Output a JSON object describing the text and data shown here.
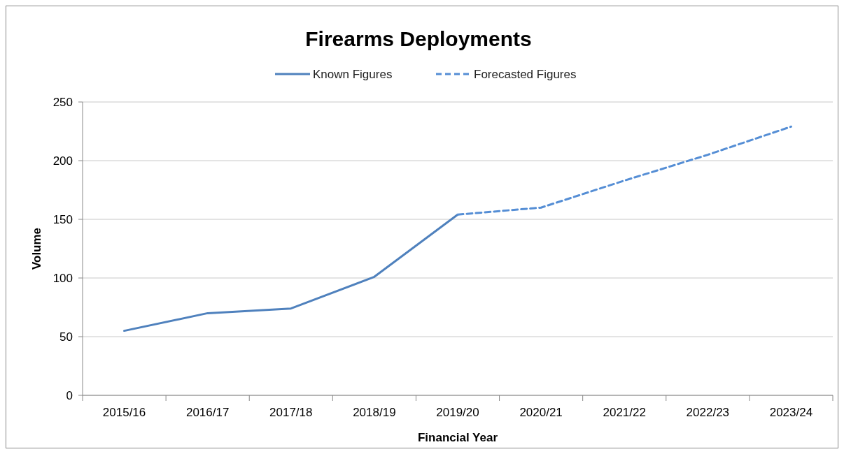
{
  "chart_data": {
    "type": "line",
    "title": "Firearms Deployments",
    "xlabel": "Financial Year",
    "ylabel": "Volume",
    "categories": [
      "2015/16",
      "2016/17",
      "2017/18",
      "2018/19",
      "2019/20",
      "2020/21",
      "2021/22",
      "2022/23",
      "2023/24"
    ],
    "series": [
      {
        "name": "Known Figures",
        "color": "#4f81bd",
        "line_style": "solid",
        "values": [
          55,
          70,
          74,
          101,
          154,
          null,
          null,
          null,
          null
        ]
      },
      {
        "name": "Forecasted Figures",
        "color": "#558ed5",
        "line_style": "dashed",
        "values": [
          null,
          null,
          null,
          null,
          154,
          160,
          183,
          205,
          229
        ]
      }
    ],
    "ylim": [
      0,
      250
    ],
    "yticks": [
      0,
      50,
      100,
      150,
      200,
      250
    ],
    "grid": "y",
    "legend": "top"
  }
}
